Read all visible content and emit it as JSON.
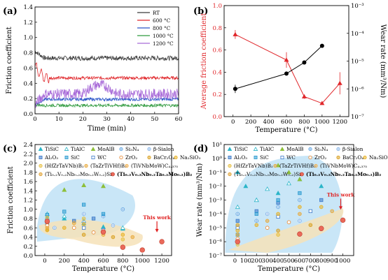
{
  "chart_data": [
    {
      "panel": "(a)",
      "type": "line",
      "xlabel": "Time (min)",
      "ylabel": "Friction coefficient",
      "xlim": [
        0,
        60
      ],
      "ylim": [
        0,
        1.4
      ],
      "xticks": [
        "0",
        "10",
        "20",
        "30",
        "40",
        "50",
        "60"
      ],
      "yticks": [
        "0.0",
        "0.2",
        "0.4",
        "0.6",
        "0.8",
        "1.0",
        "1.2",
        "1.4"
      ],
      "legend_position": "top-right",
      "series": [
        {
          "name": "RT",
          "color": "#3a3a3a",
          "base": 0.73,
          "start": 0.82,
          "noise": 0.03
        },
        {
          "name": "600 °C",
          "color": "#e0262a",
          "base": 0.47,
          "start": 0.62,
          "noise": 0.02
        },
        {
          "name": "800 °C",
          "color": "#2a55c8",
          "base": 0.19,
          "start": 0.12,
          "noise": 0.02
        },
        {
          "name": "1000 °C",
          "color": "#2f9a3e",
          "base": 0.11,
          "start": 0.12,
          "noise": 0.02
        },
        {
          "name": "1200 °C",
          "color": "#a86ad8",
          "base": 0.26,
          "start": 0.12,
          "noise": 0.07
        }
      ]
    },
    {
      "panel": "(b)",
      "type": "line",
      "xlabel": "Temperature (°C)",
      "ylabel": "Average friction coefficient",
      "ylabel_right": "Wear rate (mm³/Nm)",
      "xlim": [
        -100,
        1300
      ],
      "ylim": [
        0,
        1.0
      ],
      "ylim_right_log": [
        -7,
        -3
      ],
      "xticks": [
        "0",
        "200",
        "400",
        "600",
        "800",
        "1000",
        "1200"
      ],
      "yticks": [
        "0.0",
        "0.2",
        "0.4",
        "0.6",
        "0.8",
        "1.0"
      ],
      "yticks_right": [
        "10⁻⁷",
        "10⁻⁶",
        "10⁻⁵",
        "10⁻⁴",
        "10⁻³"
      ],
      "friction": {
        "color": "#e0262a",
        "x": [
          25,
          600,
          800,
          1000,
          1200
        ],
        "y": [
          0.74,
          0.51,
          0.18,
          0.12,
          0.3
        ],
        "err": [
          0.04,
          0.07,
          0.02,
          0.01,
          0.1
        ]
      },
      "wear_rate": {
        "color": "#000000",
        "x": [
          25,
          600,
          800,
          1000
        ],
        "log10_y": [
          -6.0,
          -5.45,
          -5.05,
          -4.45
        ],
        "err": [
          0.15,
          0.05,
          0.05,
          0.05
        ]
      }
    },
    {
      "panel": "(c)",
      "type": "scatter",
      "xlabel": "Temperature (°C)",
      "ylabel": "Friction coefficient",
      "xlim": [
        -100,
        1300
      ],
      "ylim": [
        0,
        2.4
      ],
      "xticks": [
        "0",
        "200",
        "400",
        "600",
        "800",
        "1000",
        "1200"
      ],
      "yticks": [
        "0.0",
        "0.2",
        "0.4",
        "0.6",
        "0.8",
        "1.0",
        "1.2",
        "1.4",
        "1.6",
        "1.8",
        "2.0",
        "2.2",
        "2.4"
      ],
      "annotation": "This work",
      "this_work": {
        "x": [
          25,
          600,
          800,
          1000,
          1200
        ],
        "y": [
          0.74,
          0.51,
          0.18,
          0.12,
          0.3
        ]
      },
      "points": [
        {
          "x": 25,
          "y": 0.82,
          "m": 0
        },
        {
          "x": 200,
          "y": 0.8,
          "m": 0
        },
        {
          "x": 400,
          "y": 0.7,
          "m": 0
        },
        {
          "x": 600,
          "y": 0.62,
          "m": 0
        },
        {
          "x": 800,
          "y": 0.58,
          "m": 0
        },
        {
          "x": 25,
          "y": 0.9,
          "m": 1
        },
        {
          "x": 200,
          "y": 0.85,
          "m": 1
        },
        {
          "x": 400,
          "y": 0.75,
          "m": 1
        },
        {
          "x": 600,
          "y": 0.55,
          "m": 1
        },
        {
          "x": 800,
          "y": 0.6,
          "m": 1
        },
        {
          "x": 200,
          "y": 1.42,
          "m": 2
        },
        {
          "x": 400,
          "y": 1.52,
          "m": 2
        },
        {
          "x": 600,
          "y": 1.5,
          "m": 2
        },
        {
          "x": 25,
          "y": 0.78,
          "m": 3
        },
        {
          "x": 400,
          "y": 0.72,
          "m": 3
        },
        {
          "x": 600,
          "y": 0.85,
          "m": 3
        },
        {
          "x": 800,
          "y": 1.0,
          "m": 3
        },
        {
          "x": 100,
          "y": 0.6,
          "m": 4
        },
        {
          "x": 400,
          "y": 0.9,
          "m": 4
        },
        {
          "x": 700,
          "y": 0.65,
          "m": 4
        },
        {
          "x": 25,
          "y": 0.7,
          "m": 5
        },
        {
          "x": 300,
          "y": 0.75,
          "m": 5
        },
        {
          "x": 500,
          "y": 0.8,
          "m": 5
        },
        {
          "x": 25,
          "y": 0.88,
          "m": 6
        },
        {
          "x": 200,
          "y": 0.95,
          "m": 6
        },
        {
          "x": 400,
          "y": 1.1,
          "m": 6
        },
        {
          "x": 600,
          "y": 0.9,
          "m": 6
        },
        {
          "x": 25,
          "y": 0.7,
          "m": 7
        },
        {
          "x": 400,
          "y": 0.6,
          "m": 7
        },
        {
          "x": 600,
          "y": 0.55,
          "m": 7
        },
        {
          "x": 25,
          "y": 0.65,
          "m": 8
        },
        {
          "x": 300,
          "y": 0.6,
          "m": 8
        },
        {
          "x": 500,
          "y": 0.5,
          "m": 8
        },
        {
          "x": 25,
          "y": 0.55,
          "m": 9
        },
        {
          "x": 400,
          "y": 0.45,
          "m": 9
        },
        {
          "x": 700,
          "y": 0.4,
          "m": 9
        },
        {
          "x": 25,
          "y": 0.55,
          "m": 10
        },
        {
          "x": 200,
          "y": 0.6,
          "m": 10
        },
        {
          "x": 400,
          "y": 0.68,
          "m": 10
        },
        {
          "x": 600,
          "y": 0.5,
          "m": 10
        },
        {
          "x": 800,
          "y": 0.45,
          "m": 10
        },
        {
          "x": 25,
          "y": 0.82,
          "m": 11
        },
        {
          "x": 400,
          "y": 0.8,
          "m": 11
        },
        {
          "x": 800,
          "y": 0.35,
          "m": 11
        },
        {
          "x": 25,
          "y": 0.6,
          "m": 12
        },
        {
          "x": 300,
          "y": 0.7,
          "m": 12
        },
        {
          "x": 600,
          "y": 0.45,
          "m": 12
        },
        {
          "x": 900,
          "y": 0.4,
          "m": 12
        }
      ]
    },
    {
      "panel": "(d)",
      "type": "scatter",
      "xlabel": "Temperature (°C)",
      "ylabel": "Wear rate (mm³/Nm)",
      "xlim": [
        -100,
        1100
      ],
      "ylim_log": [
        -7,
        1
      ],
      "xticks": [
        "0",
        "100",
        "200",
        "300",
        "400",
        "500",
        "600",
        "700",
        "800",
        "900",
        "1000"
      ],
      "yticks": [
        "10⁻⁷",
        "10⁻⁶",
        "10⁻⁵",
        "10⁻⁴",
        "10⁻³",
        "10⁻²",
        "10⁻¹",
        "10⁰",
        "10¹"
      ],
      "annotation": "This work",
      "this_work": {
        "x": [
          25,
          600,
          800,
          1000
        ],
        "log10_y": [
          -6.0,
          -5.45,
          -5.05,
          -4.45
        ]
      },
      "points": [
        {
          "x": 25,
          "lg": -1.0,
          "m": 0
        },
        {
          "x": 100,
          "lg": -2.0,
          "m": 0
        },
        {
          "x": 200,
          "lg": -3.0,
          "m": 0
        },
        {
          "x": 400,
          "lg": -2.5,
          "m": 0
        },
        {
          "x": 600,
          "lg": -1.5,
          "m": 0
        },
        {
          "x": 800,
          "lg": -2.0,
          "m": 0
        },
        {
          "x": 25,
          "lg": -3.5,
          "m": 1
        },
        {
          "x": 200,
          "lg": -3.0,
          "m": 1
        },
        {
          "x": 300,
          "lg": -2.2,
          "m": 1
        },
        {
          "x": 500,
          "lg": -1.8,
          "m": 1
        },
        {
          "x": 400,
          "lg": -0.5,
          "m": 2
        },
        {
          "x": 500,
          "lg": -1.0,
          "m": 2
        },
        {
          "x": 600,
          "lg": -1.5,
          "m": 2
        },
        {
          "x": 25,
          "lg": -4.0,
          "m": 3
        },
        {
          "x": 200,
          "lg": -4.5,
          "m": 3
        },
        {
          "x": 400,
          "lg": -3.5,
          "m": 3
        },
        {
          "x": 600,
          "lg": -3.0,
          "m": 3
        },
        {
          "x": 25,
          "lg": -5.0,
          "m": 4
        },
        {
          "x": 300,
          "lg": -4.0,
          "m": 4
        },
        {
          "x": 600,
          "lg": -4.5,
          "m": 4
        },
        {
          "x": 25,
          "lg": -4.5,
          "m": 5
        },
        {
          "x": 200,
          "lg": -3.8,
          "m": 5
        },
        {
          "x": 400,
          "lg": -3.2,
          "m": 5
        },
        {
          "x": 800,
          "lg": -3.0,
          "m": 5
        },
        {
          "x": 25,
          "lg": -5.5,
          "m": 6
        },
        {
          "x": 200,
          "lg": -4.0,
          "m": 6
        },
        {
          "x": 400,
          "lg": -3.0,
          "m": 6
        },
        {
          "x": 600,
          "lg": -2.5,
          "m": 6
        },
        {
          "x": 25,
          "lg": -5.0,
          "m": 7
        },
        {
          "x": 400,
          "lg": -4.2,
          "m": 7
        },
        {
          "x": 700,
          "lg": -3.8,
          "m": 7
        },
        {
          "x": 25,
          "lg": -5.8,
          "m": 8
        },
        {
          "x": 300,
          "lg": -5.0,
          "m": 8
        },
        {
          "x": 500,
          "lg": -4.6,
          "m": 8
        },
        {
          "x": 25,
          "lg": -4.8,
          "m": 9
        },
        {
          "x": 400,
          "lg": -5.2,
          "m": 9
        },
        {
          "x": 700,
          "lg": -4.8,
          "m": 9
        },
        {
          "x": 25,
          "lg": -5.2,
          "m": 10
        },
        {
          "x": 200,
          "lg": -4.8,
          "m": 10
        },
        {
          "x": 400,
          "lg": -4.0,
          "m": 10
        },
        {
          "x": 600,
          "lg": -3.5,
          "m": 10
        },
        {
          "x": 800,
          "lg": -3.5,
          "m": 10
        },
        {
          "x": 25,
          "lg": -6.2,
          "m": 11
        },
        {
          "x": 400,
          "lg": -5.5,
          "m": 11
        },
        {
          "x": 800,
          "lg": -5.0,
          "m": 11
        },
        {
          "x": 25,
          "lg": -5.5,
          "m": 12
        },
        {
          "x": 300,
          "lg": -4.5,
          "m": 12
        },
        {
          "x": 600,
          "lg": -4.0,
          "m": 12
        },
        {
          "x": 900,
          "lg": -3.8,
          "m": 12
        }
      ]
    }
  ],
  "legend_cd": [
    {
      "label": "TiSiC",
      "m": 0
    },
    {
      "label": "TiAlC",
      "m": 1
    },
    {
      "label": "MoAlB",
      "m": 2
    },
    {
      "label": "Si₃N₄",
      "m": 3
    },
    {
      "label": "β-Sialon",
      "m": 4
    },
    {
      "label": "Al₂O₃",
      "m": 5
    },
    {
      "label": "SiC",
      "m": 6
    },
    {
      "label": "WC",
      "m": 7
    },
    {
      "label": "ZrO₂",
      "m": 8
    },
    {
      "label": "BaCr₂O₄",
      "m": 9
    },
    {
      "label": "Na₂SiO₃",
      "m": 10
    },
    {
      "label": "(HfZrTaVNb)B₂",
      "m": 11
    },
    {
      "label": "(TaZrTiVHf)B₂",
      "m": 12
    },
    {
      "label": "(TiVNbMoW)C₄.₃₇₅",
      "m": 13
    },
    {
      "label": "(Ti₀.₂V₀.₂Nb₀.₂Mo₀.₂W₀.₂)Si₂",
      "m": 14
    },
    {
      "label": "(Ti₀.₂V₀.₂Nb₀.₂Ta₀.₂Mo₀.₂)B₂",
      "m": 15,
      "bold": true
    }
  ],
  "marker_styles": [
    {
      "shape": "triangle",
      "color": "#2bb5c8"
    },
    {
      "shape": "triangle-open",
      "color": "#2bb5c8"
    },
    {
      "shape": "triangle",
      "color": "#8dbf3a"
    },
    {
      "shape": "circle-cross",
      "color": "#5aa0e0"
    },
    {
      "shape": "circle-cross",
      "color": "#7fb0e8"
    },
    {
      "shape": "square-half",
      "color": "#3a78c8"
    },
    {
      "shape": "square-half",
      "color": "#2a9ad0"
    },
    {
      "shape": "square-open",
      "color": "#3a78c8"
    },
    {
      "shape": "circle-open",
      "color": "#e89040"
    },
    {
      "shape": "circle-half",
      "color": "#d8a020"
    },
    {
      "shape": "circle-half",
      "color": "#e8b020"
    },
    {
      "shape": "circle-half",
      "color": "#e8c040"
    },
    {
      "shape": "circle-half",
      "color": "#e8a838"
    },
    {
      "shape": "circle-half",
      "color": "#f0b050"
    },
    {
      "shape": "circle-half",
      "color": "#e0a030"
    },
    {
      "shape": "circle-fill",
      "color": "#ea6a5a"
    }
  ],
  "colors": {
    "blue_region": "#bfe2f6",
    "orange_region": "#f6e2b8",
    "this_work_arrow": "#e02020"
  }
}
